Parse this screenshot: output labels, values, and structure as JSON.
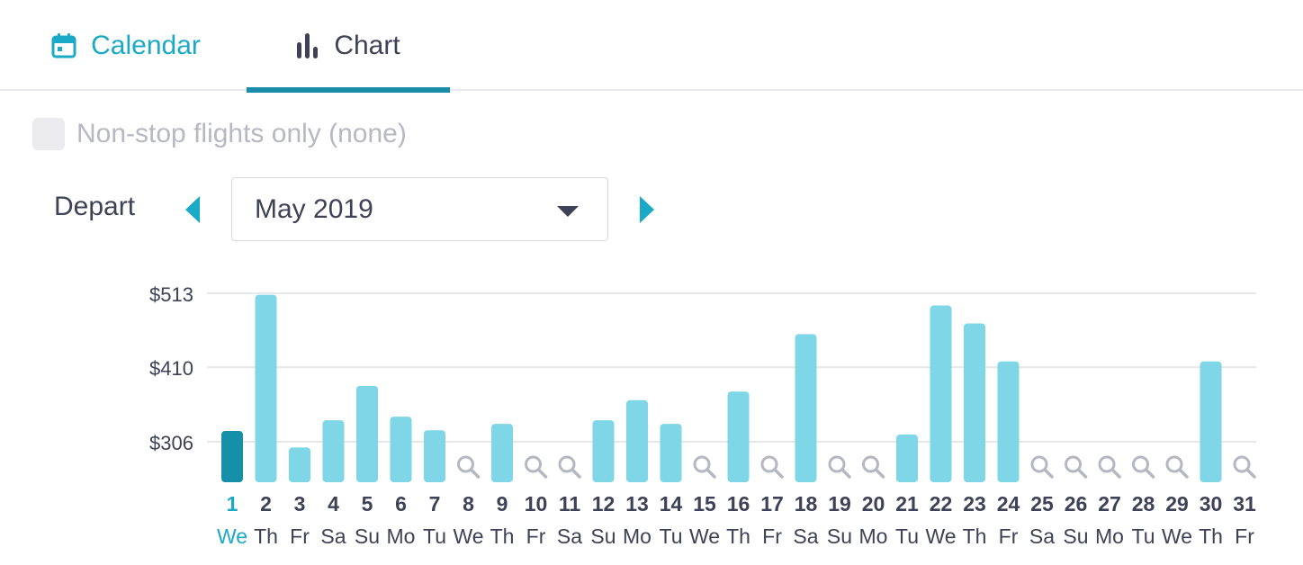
{
  "tabs": {
    "calendar": {
      "label": "Calendar",
      "icon": "calendar-icon",
      "active": false
    },
    "chart": {
      "label": "Chart",
      "icon": "bar-chart-icon",
      "active": true
    }
  },
  "filters": {
    "nonstop_label": "Non-stop flights only (none)",
    "nonstop_checked": false
  },
  "depart": {
    "label": "Depart",
    "month": "May 2019",
    "prev_icon": "chevron-left-icon",
    "next_icon": "chevron-right-icon"
  },
  "colors": {
    "accent": "#1ba9c8",
    "bar": "#7fd6e6",
    "bar_selected": "#168fa9",
    "day_text": "#3f4256",
    "muted_icon": "#b5b7c1"
  },
  "chart_data": {
    "type": "bar",
    "y_ticks": [
      {
        "value": 513,
        "label": "$513"
      },
      {
        "value": 410,
        "label": "$410"
      },
      {
        "value": 306,
        "label": "$306"
      }
    ],
    "selected_day": 1,
    "days": [
      {
        "date": "1",
        "weekday": "We",
        "price": 321
      },
      {
        "date": "2",
        "weekday": "Th",
        "price": 511
      },
      {
        "date": "3",
        "weekday": "Fr",
        "price": 298
      },
      {
        "date": "4",
        "weekday": "Sa",
        "price": 336
      },
      {
        "date": "5",
        "weekday": "Su",
        "price": 384
      },
      {
        "date": "6",
        "weekday": "Mo",
        "price": 341
      },
      {
        "date": "7",
        "weekday": "Tu",
        "price": 322
      },
      {
        "date": "8",
        "weekday": "We",
        "price": null
      },
      {
        "date": "9",
        "weekday": "Th",
        "price": 331
      },
      {
        "date": "10",
        "weekday": "Fr",
        "price": null
      },
      {
        "date": "11",
        "weekday": "Sa",
        "price": null
      },
      {
        "date": "12",
        "weekday": "Su",
        "price": 336
      },
      {
        "date": "13",
        "weekday": "Mo",
        "price": 364
      },
      {
        "date": "14",
        "weekday": "Tu",
        "price": 331
      },
      {
        "date": "15",
        "weekday": "We",
        "price": null
      },
      {
        "date": "16",
        "weekday": "Th",
        "price": 376
      },
      {
        "date": "17",
        "weekday": "Fr",
        "price": null
      },
      {
        "date": "18",
        "weekday": "Sa",
        "price": 456
      },
      {
        "date": "19",
        "weekday": "Su",
        "price": null
      },
      {
        "date": "20",
        "weekday": "Mo",
        "price": null
      },
      {
        "date": "21",
        "weekday": "Tu",
        "price": 316
      },
      {
        "date": "22",
        "weekday": "We",
        "price": 496
      },
      {
        "date": "23",
        "weekday": "Th",
        "price": 471
      },
      {
        "date": "24",
        "weekday": "Fr",
        "price": 418
      },
      {
        "date": "25",
        "weekday": "Sa",
        "price": null
      },
      {
        "date": "26",
        "weekday": "Su",
        "price": null
      },
      {
        "date": "27",
        "weekday": "Mo",
        "price": null
      },
      {
        "date": "28",
        "weekday": "Tu",
        "price": null
      },
      {
        "date": "29",
        "weekday": "We",
        "price": null
      },
      {
        "date": "30",
        "weekday": "Th",
        "price": 418
      },
      {
        "date": "31",
        "weekday": "Fr",
        "price": null
      }
    ]
  }
}
